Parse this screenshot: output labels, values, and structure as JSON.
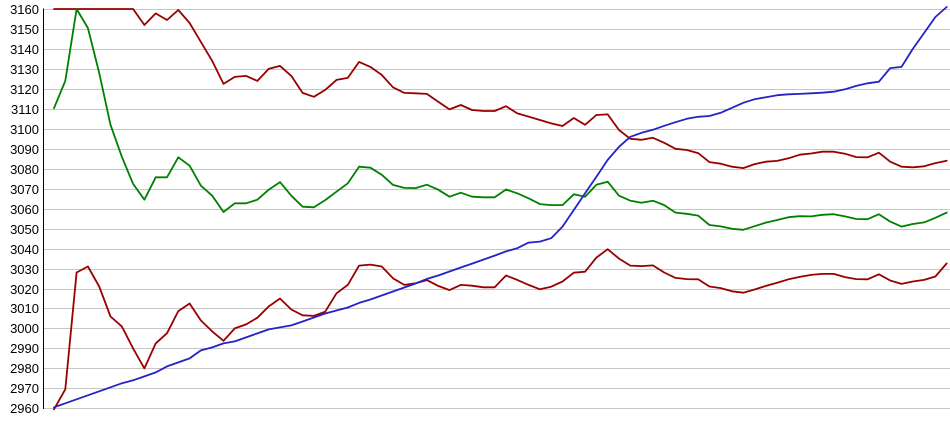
{
  "chart": {
    "background_color": "#ffffff",
    "grid_color": "#c6c6c6",
    "axis_color": "#000000",
    "label_color": "#000000",
    "title": "",
    "legend": "none"
  },
  "chart_data": {
    "type": "line",
    "title": "",
    "xlabel": "",
    "ylabel": "",
    "grid": "horizontal",
    "legend_position": "none",
    "x_axis": {
      "labels_visible": false,
      "point_count": 80
    },
    "y_axis": {
      "min": 2960,
      "max": 3160,
      "step": 10,
      "tick_labels": [
        "3160",
        "3150",
        "3140",
        "3130",
        "3120",
        "3110",
        "3100",
        "3090",
        "3080",
        "3070",
        "3060",
        "3050",
        "3040",
        "3030",
        "3020",
        "3010",
        "3000",
        "2990",
        "2980",
        "2970",
        "2960"
      ]
    },
    "series": [
      {
        "name": "upper-dark-red",
        "color": "#990000",
        "values": [
          3160,
          3160,
          3160,
          3160,
          3160,
          3160,
          3160,
          3160,
          3152,
          3157.8,
          3154.5,
          3159.5,
          3153,
          3143.5,
          3134,
          3122.5,
          3126,
          3126.5,
          3124,
          3130,
          3131.5,
          3126.5,
          3118,
          3116,
          3119.5,
          3124.5,
          3125.5,
          3133.5,
          3131,
          3127,
          3120.8,
          3118,
          3117.8,
          3117.5,
          3113.5,
          3109.7,
          3111.9,
          3109.4,
          3108.9,
          3108.9,
          3111.3,
          3107.7,
          3106.1,
          3104.4,
          3102.7,
          3101.4,
          3105.4,
          3102,
          3106.9,
          3107.2,
          3099.4,
          3095,
          3094.5,
          3095.5,
          3093,
          3090,
          3089.4,
          3087.8,
          3083.3,
          3082.5,
          3081,
          3080.3,
          3082.3,
          3083.5,
          3083.9,
          3085.2,
          3087,
          3087.6,
          3088.5,
          3088.5,
          3087.5,
          3085.8,
          3085.7,
          3088,
          3083.5,
          3081,
          3080.7,
          3081.2,
          3082.8,
          3084
        ]
      },
      {
        "name": "lower-dark-red",
        "color": "#990000",
        "values": [
          2959.5,
          2969.5,
          3028,
          3031,
          3021,
          3006,
          3001,
          2990,
          2980,
          2992.5,
          2997.6,
          3008.7,
          3012.5,
          3004,
          2998.5,
          2993.8,
          3000,
          3002,
          3005.4,
          3011,
          3015,
          3009.5,
          3006.6,
          3006.3,
          3008.4,
          3017.6,
          3021.8,
          3031.5,
          3032,
          3031,
          3025.1,
          3021.8,
          3022.6,
          3024.2,
          3021.3,
          3019.2,
          3021.8,
          3021.4,
          3020.6,
          3020.6,
          3026.5,
          3024.3,
          3021.8,
          3019.6,
          3020.9,
          3023.5,
          3027.9,
          3028.4,
          3035.5,
          3039.7,
          3035,
          3031.5,
          3031.2,
          3031.6,
          3028,
          3025.3,
          3024.7,
          3024.6,
          3021,
          3020.2,
          3018.6,
          3017.9,
          3019.5,
          3021.3,
          3022.9,
          3024.6,
          3025.8,
          3026.8,
          3027.3,
          3027.3,
          3025.7,
          3024.7,
          3024.6,
          3027.1,
          3024,
          3022.3,
          3023.5,
          3024.3,
          3026,
          3032.6
        ]
      },
      {
        "name": "green",
        "color": "#008000",
        "values": [
          3110.3,
          3124,
          3160,
          3150.5,
          3128,
          3102,
          3086,
          3072.4,
          3064.5,
          3075.7,
          3075.7,
          3085.7,
          3081.5,
          3071.5,
          3066.5,
          3058.3,
          3062.7,
          3062.7,
          3064.5,
          3069.5,
          3073.3,
          3066.5,
          3061,
          3060.7,
          3064.3,
          3068.5,
          3072.7,
          3081,
          3080.5,
          3077,
          3071.9,
          3070.4,
          3070.3,
          3072,
          3069.5,
          3066,
          3068,
          3066,
          3065.7,
          3065.7,
          3069.6,
          3067.7,
          3065.2,
          3062.3,
          3061.8,
          3061.8,
          3067.2,
          3066,
          3072,
          3073.5,
          3066.5,
          3064,
          3063,
          3064,
          3061.8,
          3058,
          3057.4,
          3056.5,
          3051.8,
          3051.1,
          3049.9,
          3049.4,
          3051.2,
          3053,
          3054.3,
          3055.7,
          3056.2,
          3056.1,
          3056.9,
          3057.2,
          3056.1,
          3054.8,
          3054.7,
          3057.2,
          3053.5,
          3051,
          3052.3,
          3053.1,
          3055.4,
          3058
        ]
      },
      {
        "name": "blue",
        "color": "#2323c8",
        "values": [
          2960.5,
          2962.5,
          2964.5,
          2966.5,
          2968.5,
          2970.5,
          2972.5,
          2974,
          2976,
          2978,
          2981,
          2983,
          2985,
          2989,
          2990.5,
          2992.5,
          2993.5,
          2995.5,
          2997.5,
          2999.5,
          3000.5,
          3001.5,
          3003.5,
          3005.5,
          3007.5,
          3009,
          3010.5,
          3012.8,
          3014.5,
          3016.5,
          3018.5,
          3020.5,
          3022.5,
          3024.8,
          3026.5,
          3028.5,
          3030.5,
          3032.5,
          3034.5,
          3036.5,
          3038.6,
          3040.2,
          3043,
          3043.5,
          3045.2,
          3051,
          3059.3,
          3067.7,
          3076,
          3084.4,
          3091,
          3096,
          3098,
          3099.5,
          3101.5,
          3103.3,
          3105,
          3106,
          3106.4,
          3108,
          3110.5,
          3113,
          3114.8,
          3115.8,
          3116.8,
          3117.3,
          3117.5,
          3117.8,
          3118.1,
          3118.6,
          3119.8,
          3121.5,
          3122.8,
          3123.6,
          3130.4,
          3131,
          3140,
          3148,
          3156,
          3161
        ]
      }
    ]
  }
}
